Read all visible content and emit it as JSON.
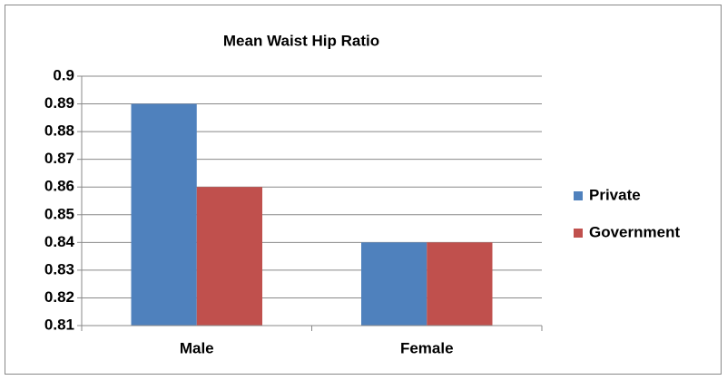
{
  "chart_data": {
    "type": "bar",
    "title": "Mean Waist Hip Ratio",
    "categories": [
      "Male",
      "Female"
    ],
    "series": [
      {
        "name": "Private",
        "color": "#4f81bd",
        "values": [
          0.89,
          0.84
        ]
      },
      {
        "name": "Government",
        "color": "#c0504d",
        "values": [
          0.86,
          0.84
        ]
      }
    ],
    "ylim": [
      0.81,
      0.9
    ],
    "yticks": [
      0.81,
      0.82,
      0.83,
      0.84,
      0.85,
      0.86,
      0.87,
      0.88,
      0.89,
      0.9
    ],
    "grid": true,
    "legend": "right"
  }
}
